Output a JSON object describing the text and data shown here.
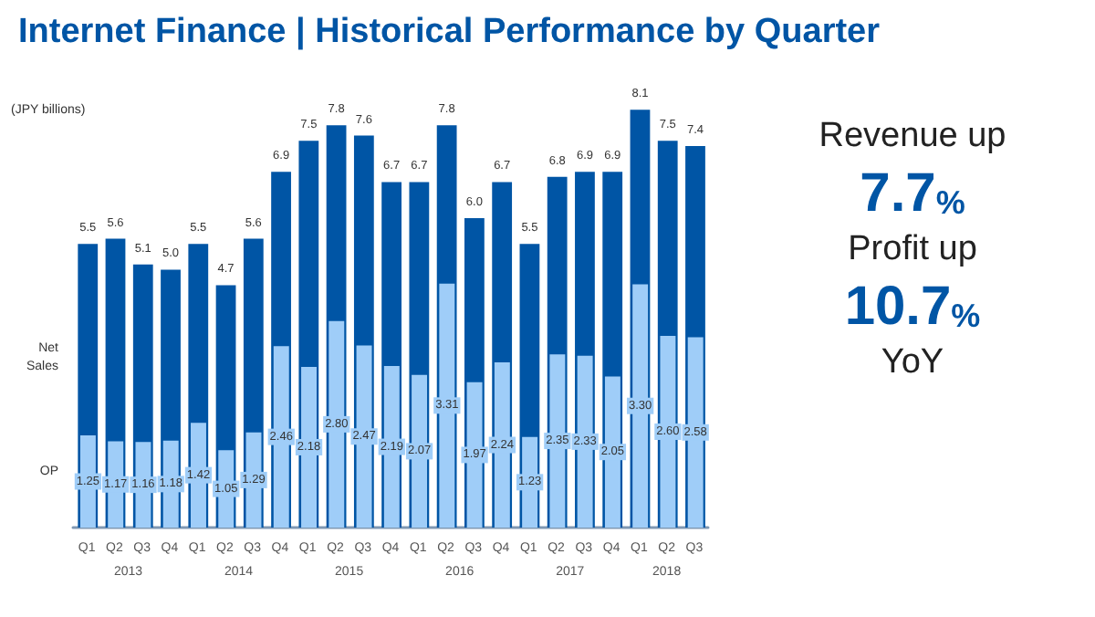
{
  "chart_data": {
    "type": "bar",
    "title": "Internet Finance | Historical Performance by Quarter",
    "ylabel": "(JPY billions)",
    "categories": [
      "Q1",
      "Q2",
      "Q3",
      "Q4",
      "Q1",
      "Q2",
      "Q3",
      "Q4",
      "Q1",
      "Q2",
      "Q3",
      "Q4",
      "Q1",
      "Q2",
      "Q3",
      "Q4",
      "Q1",
      "Q2",
      "Q3",
      "Q4",
      "Q1",
      "Q2",
      "Q3"
    ],
    "series": [
      {
        "name": "Net Sales",
        "color": "#0055a5",
        "values": [
          5.5,
          5.6,
          5.1,
          5.0,
          5.5,
          4.7,
          5.6,
          6.9,
          7.5,
          7.8,
          7.6,
          6.7,
          6.7,
          7.8,
          6.0,
          6.7,
          5.5,
          6.8,
          6.9,
          6.9,
          8.1,
          7.5,
          7.4
        ],
        "value_labels": [
          "5.5",
          "5.6",
          "5.1",
          "5.0",
          "5.5",
          "4.7",
          "5.6",
          "6.9",
          "7.5",
          "7.8",
          "7.6",
          "6.7",
          "6.7",
          "7.8",
          "6.0",
          "6.7",
          "5.5",
          "6.8",
          "6.9",
          "6.9",
          "8.1",
          "7.5",
          "7.4"
        ]
      },
      {
        "name": "OP",
        "color": "#9fcdf8",
        "axis": "y2",
        "values": [
          1.25,
          1.17,
          1.16,
          1.18,
          1.42,
          1.05,
          1.29,
          2.46,
          2.18,
          2.8,
          2.47,
          2.19,
          2.07,
          3.31,
          1.97,
          2.24,
          1.23,
          2.35,
          2.33,
          2.05,
          3.3,
          2.6,
          2.58
        ],
        "value_labels": [
          "1.25",
          "1.17",
          "1.16",
          "1.18",
          "1.42",
          "1.05",
          "1.29",
          "2.46",
          "2.18",
          "2.80",
          "2.47",
          "2.19",
          "2.07",
          "3.31",
          "1.97",
          "2.24",
          "1.23",
          "2.35",
          "2.33",
          "2.05",
          "3.30",
          "2.60",
          "2.58"
        ]
      }
    ],
    "legend": false,
    "tick_labels": "x",
    "annotations": [
      "2013",
      "2014",
      "2015",
      "2016",
      "2017",
      "2018",
      "Revenue up",
      "7.7%",
      "Profit up",
      "10.7%",
      "YoY"
    ]
  }
}
